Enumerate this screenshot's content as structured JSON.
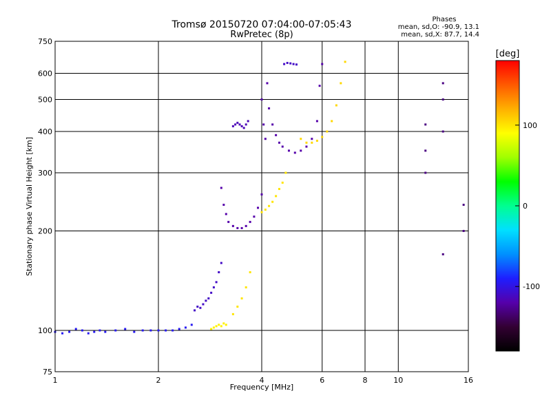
{
  "chart_data": {
    "type": "scatter",
    "title": "Tromsø 20150720 07:04:00-07:05:43",
    "subtitle": "RwPretec (8p)",
    "stats": {
      "heading": "Phases",
      "line_o": "mean, sd,O: -90.9, 13.1",
      "line_x": "mean, sd,X: 87.7, 14.4"
    },
    "xlabel": "Frequency [MHz]",
    "ylabel": "Stationary phase Virtual Height [km]",
    "xscale": "log",
    "yscale": "log",
    "xlim": [
      1,
      16
    ],
    "ylim": [
      75,
      750
    ],
    "xticks": [
      1,
      2,
      4,
      6,
      8,
      10,
      16
    ],
    "yticks": [
      75,
      100,
      200,
      300,
      400,
      500,
      600,
      750
    ],
    "grid_x": [
      1,
      2,
      4,
      6,
      8,
      10,
      16
    ],
    "grid_y": [
      75,
      100,
      200,
      300,
      400,
      500,
      600,
      750
    ],
    "colorbar": {
      "label": "[deg]",
      "range": [
        -180,
        180
      ],
      "ticks": [
        100,
        0,
        -100
      ],
      "colors": [
        "#000000",
        "#330033",
        "#5500aa",
        "#1e1eff",
        "#0090ff",
        "#00e0ff",
        "#00ff90",
        "#00ff00",
        "#a0ff00",
        "#ffff00",
        "#ffb000",
        "#ff5a00",
        "#ff0000"
      ]
    },
    "series": [
      {
        "phase": -95,
        "x": [
          1.0,
          1.05,
          1.1,
          1.15,
          1.2,
          1.25,
          1.3,
          1.35,
          1.4,
          1.5,
          1.6,
          1.7,
          1.8,
          1.9,
          2.0,
          2.1,
          2.2,
          2.3,
          2.4,
          2.5
        ],
        "y": [
          99,
          98,
          99,
          101,
          100,
          98,
          99,
          100,
          99,
          100,
          101,
          99,
          100,
          100,
          100,
          100,
          100,
          101,
          102,
          104
        ]
      },
      {
        "phase": -110,
        "x": [
          2.55,
          2.6,
          2.65,
          2.7,
          2.75,
          2.8,
          2.85,
          2.9,
          2.95,
          3.0,
          3.05
        ],
        "y": [
          115,
          118,
          117,
          120,
          123,
          125,
          130,
          135,
          140,
          150,
          160
        ]
      },
      {
        "phase": -120,
        "x": [
          3.05,
          3.1,
          3.15,
          3.2,
          3.3,
          3.4,
          3.5,
          3.6,
          3.7,
          3.8,
          3.9,
          4.0
        ],
        "y": [
          270,
          240,
          225,
          213,
          207,
          204,
          204,
          207,
          213,
          221,
          235,
          258
        ]
      },
      {
        "phase": -115,
        "x": [
          3.3,
          3.35,
          3.4,
          3.45,
          3.5,
          3.55,
          3.6,
          3.65
        ],
        "y": [
          415,
          420,
          425,
          420,
          415,
          410,
          420,
          430
        ]
      },
      {
        "phase": -120,
        "x": [
          4.0,
          4.05,
          4.1,
          4.15,
          4.2,
          4.3,
          4.4,
          4.5,
          4.6,
          4.8,
          5.0,
          5.2,
          5.4,
          5.6,
          5.8,
          5.9,
          6.0
        ],
        "y": [
          500,
          420,
          380,
          560,
          470,
          420,
          390,
          370,
          360,
          350,
          345,
          350,
          360,
          380,
          430,
          550,
          640
        ]
      },
      {
        "phase": -110,
        "x": [
          4.65,
          4.75,
          4.85,
          4.95,
          5.05
        ],
        "y": [
          640,
          645,
          643,
          640,
          638
        ]
      },
      {
        "phase": 95,
        "x": [
          2.85,
          2.9,
          2.95,
          3.0,
          3.05,
          3.1,
          3.15
        ],
        "y": [
          101,
          102,
          103,
          104,
          103,
          105,
          104
        ]
      },
      {
        "phase": 100,
        "x": [
          3.3,
          3.4,
          3.5,
          3.6,
          3.7
        ],
        "y": [
          112,
          118,
          125,
          135,
          150
        ]
      },
      {
        "phase": 100,
        "x": [
          4.0,
          4.1,
          4.2,
          4.3,
          4.4,
          4.5,
          4.6,
          4.7
        ],
        "y": [
          228,
          232,
          238,
          245,
          255,
          268,
          280,
          300
        ]
      },
      {
        "phase": 105,
        "x": [
          5.2,
          5.4,
          5.6,
          5.8,
          6.0,
          6.2,
          6.4,
          6.6,
          6.8,
          7.0
        ],
        "y": [
          380,
          370,
          370,
          375,
          385,
          400,
          430,
          480,
          560,
          650
        ]
      },
      {
        "phase": -130,
        "x": [
          12.0,
          12.0,
          12.0,
          13.5,
          13.5,
          13.5,
          13.5,
          15.5,
          15.5
        ],
        "y": [
          420,
          350,
          300,
          560,
          500,
          400,
          170,
          240,
          200
        ]
      }
    ]
  }
}
